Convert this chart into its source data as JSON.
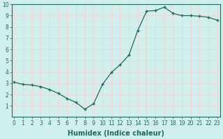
{
  "x": [
    0,
    1,
    2,
    3,
    4,
    5,
    6,
    7,
    8,
    9,
    10,
    11,
    12,
    13,
    14,
    15,
    16,
    17,
    18,
    19,
    20,
    21,
    22,
    23
  ],
  "y": [
    3.1,
    2.9,
    2.85,
    2.7,
    2.45,
    2.1,
    1.65,
    1.3,
    0.7,
    1.2,
    2.9,
    3.95,
    4.65,
    5.5,
    7.7,
    9.4,
    9.45,
    9.75,
    9.2,
    9.0,
    9.0,
    8.95,
    8.85,
    8.6
  ],
  "xlabel": "Humidex (Indice chaleur)",
  "line_color": "#1a6b5a",
  "bg_color": "#d0f0ee",
  "grid_color": "#f0d8d8",
  "xlim": [
    -0.3,
    23.3
  ],
  "ylim": [
    0,
    10
  ],
  "yticks": [
    1,
    2,
    3,
    4,
    5,
    6,
    7,
    8,
    9,
    10
  ],
  "xticks": [
    0,
    1,
    2,
    3,
    4,
    5,
    6,
    7,
    8,
    9,
    10,
    11,
    12,
    13,
    14,
    15,
    16,
    17,
    18,
    19,
    20,
    21,
    22,
    23
  ],
  "tick_fontsize": 5.5,
  "label_fontsize": 7
}
